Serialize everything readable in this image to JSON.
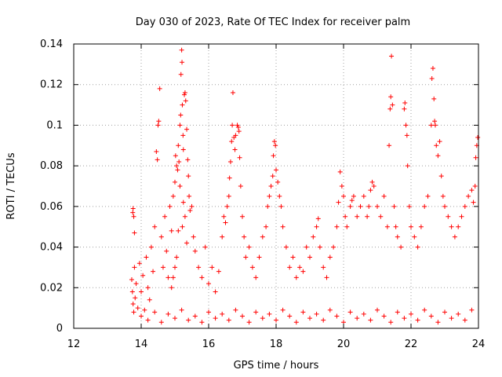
{
  "chart_data": {
    "type": "scatter",
    "title": "Day 030 of 2023, Rate Of TEC Index for receiver palm",
    "xlabel": "GPS time / hours",
    "ylabel": "ROTI / TECUs",
    "xlim": [
      12,
      24
    ],
    "ylim": [
      0,
      0.14
    ],
    "x_ticks": [
      12,
      14,
      16,
      18,
      20,
      22,
      24
    ],
    "x_tick_labels": [
      "12",
      "14",
      "16",
      "18",
      "20",
      "22",
      "24"
    ],
    "y_ticks": [
      0,
      0.02,
      0.04,
      0.06,
      0.08,
      0.1,
      0.12,
      0.14
    ],
    "y_tick_labels": [
      "0",
      "0.02",
      "0.04",
      "0.06",
      "0.08",
      "0.1",
      "0.12",
      "0.14"
    ],
    "grid": true,
    "marker": "+",
    "series": [
      {
        "name": "ROTI",
        "color": "#ff0000",
        "points": [
          [
            13.75,
            0.057
          ],
          [
            13.76,
            0.059
          ],
          [
            13.78,
            0.055
          ],
          [
            13.8,
            0.047
          ],
          [
            13.72,
            0.024
          ],
          [
            13.74,
            0.018
          ],
          [
            13.76,
            0.012
          ],
          [
            13.78,
            0.008
          ],
          [
            13.8,
            0.03
          ],
          [
            13.82,
            0.015
          ],
          [
            13.85,
            0.022
          ],
          [
            13.9,
            0.01
          ],
          [
            13.95,
            0.032
          ],
          [
            14.0,
            0.018
          ],
          [
            14.05,
            0.026
          ],
          [
            14.1,
            0.009
          ],
          [
            14.15,
            0.035
          ],
          [
            14.2,
            0.02
          ],
          [
            14.25,
            0.014
          ],
          [
            14.3,
            0.04
          ],
          [
            14.35,
            0.028
          ],
          [
            14.4,
            0.05
          ],
          [
            14.45,
            0.087
          ],
          [
            14.48,
            0.083
          ],
          [
            14.5,
            0.1
          ],
          [
            14.52,
            0.102
          ],
          [
            14.55,
            0.118
          ],
          [
            14.6,
            0.045
          ],
          [
            14.65,
            0.03
          ],
          [
            14.7,
            0.055
          ],
          [
            14.75,
            0.038
          ],
          [
            14.8,
            0.025
          ],
          [
            14.85,
            0.06
          ],
          [
            14.9,
            0.048
          ],
          [
            14.95,
            0.065
          ],
          [
            15.0,
            0.072
          ],
          [
            15.02,
            0.085
          ],
          [
            15.05,
            0.08
          ],
          [
            15.08,
            0.078
          ],
          [
            15.1,
            0.09
          ],
          [
            15.12,
            0.082
          ],
          [
            15.15,
            0.1
          ],
          [
            15.17,
            0.105
          ],
          [
            15.18,
            0.125
          ],
          [
            15.2,
            0.137
          ],
          [
            15.21,
            0.131
          ],
          [
            15.22,
            0.11
          ],
          [
            15.24,
            0.095
          ],
          [
            15.25,
            0.088
          ],
          [
            15.28,
            0.115
          ],
          [
            15.3,
            0.116
          ],
          [
            15.32,
            0.112
          ],
          [
            15.35,
            0.098
          ],
          [
            15.38,
            0.083
          ],
          [
            15.4,
            0.075
          ],
          [
            15.42,
            0.065
          ],
          [
            15.45,
            0.058
          ],
          [
            15.5,
            0.06
          ],
          [
            15.55,
            0.045
          ],
          [
            15.6,
            0.038
          ],
          [
            15.3,
            0.055
          ],
          [
            15.25,
            0.062
          ],
          [
            15.22,
            0.05
          ],
          [
            15.35,
            0.042
          ],
          [
            15.15,
            0.07
          ],
          [
            15.1,
            0.048
          ],
          [
            15.05,
            0.035
          ],
          [
            15.0,
            0.03
          ],
          [
            14.95,
            0.025
          ],
          [
            14.9,
            0.02
          ],
          [
            15.7,
            0.03
          ],
          [
            15.8,
            0.025
          ],
          [
            15.9,
            0.04
          ],
          [
            16.0,
            0.022
          ],
          [
            16.1,
            0.03
          ],
          [
            16.2,
            0.018
          ],
          [
            16.3,
            0.028
          ],
          [
            16.4,
            0.045
          ],
          [
            16.45,
            0.055
          ],
          [
            16.5,
            0.052
          ],
          [
            16.55,
            0.06
          ],
          [
            16.6,
            0.065
          ],
          [
            16.62,
            0.074
          ],
          [
            16.65,
            0.082
          ],
          [
            16.68,
            0.092
          ],
          [
            16.7,
            0.1
          ],
          [
            16.72,
            0.116
          ],
          [
            16.75,
            0.094
          ],
          [
            16.78,
            0.088
          ],
          [
            16.8,
            0.095
          ],
          [
            16.85,
            0.1
          ],
          [
            16.88,
            0.099
          ],
          [
            16.9,
            0.097
          ],
          [
            16.92,
            0.084
          ],
          [
            16.95,
            0.07
          ],
          [
            17.0,
            0.055
          ],
          [
            17.05,
            0.045
          ],
          [
            17.1,
            0.035
          ],
          [
            17.2,
            0.04
          ],
          [
            17.3,
            0.03
          ],
          [
            17.4,
            0.025
          ],
          [
            17.5,
            0.035
          ],
          [
            17.6,
            0.045
          ],
          [
            17.7,
            0.05
          ],
          [
            17.75,
            0.06
          ],
          [
            17.8,
            0.065
          ],
          [
            17.85,
            0.07
          ],
          [
            17.9,
            0.075
          ],
          [
            17.92,
            0.085
          ],
          [
            17.95,
            0.092
          ],
          [
            17.98,
            0.09
          ],
          [
            18.0,
            0.078
          ],
          [
            18.05,
            0.072
          ],
          [
            18.1,
            0.065
          ],
          [
            18.15,
            0.06
          ],
          [
            18.2,
            0.05
          ],
          [
            18.3,
            0.04
          ],
          [
            18.4,
            0.03
          ],
          [
            18.5,
            0.035
          ],
          [
            18.6,
            0.025
          ],
          [
            18.7,
            0.03
          ],
          [
            18.8,
            0.028
          ],
          [
            18.9,
            0.04
          ],
          [
            19.0,
            0.035
          ],
          [
            19.1,
            0.045
          ],
          [
            19.2,
            0.05
          ],
          [
            19.25,
            0.054
          ],
          [
            19.3,
            0.04
          ],
          [
            19.4,
            0.03
          ],
          [
            19.5,
            0.025
          ],
          [
            19.6,
            0.035
          ],
          [
            19.7,
            0.04
          ],
          [
            19.8,
            0.05
          ],
          [
            19.85,
            0.062
          ],
          [
            19.9,
            0.077
          ],
          [
            19.95,
            0.07
          ],
          [
            20.0,
            0.065
          ],
          [
            20.05,
            0.055
          ],
          [
            20.1,
            0.05
          ],
          [
            20.2,
            0.06
          ],
          [
            20.25,
            0.063
          ],
          [
            20.3,
            0.065
          ],
          [
            20.4,
            0.055
          ],
          [
            20.5,
            0.06
          ],
          [
            20.6,
            0.065
          ],
          [
            20.7,
            0.055
          ],
          [
            20.75,
            0.06
          ],
          [
            20.8,
            0.068
          ],
          [
            20.85,
            0.072
          ],
          [
            20.9,
            0.07
          ],
          [
            21.0,
            0.06
          ],
          [
            21.1,
            0.055
          ],
          [
            21.2,
            0.065
          ],
          [
            21.3,
            0.05
          ],
          [
            21.35,
            0.09
          ],
          [
            21.38,
            0.108
          ],
          [
            21.4,
            0.114
          ],
          [
            21.42,
            0.134
          ],
          [
            21.45,
            0.11
          ],
          [
            21.5,
            0.06
          ],
          [
            21.55,
            0.05
          ],
          [
            21.6,
            0.045
          ],
          [
            21.7,
            0.04
          ],
          [
            21.8,
            0.108
          ],
          [
            21.82,
            0.111
          ],
          [
            21.85,
            0.1
          ],
          [
            21.88,
            0.095
          ],
          [
            21.9,
            0.08
          ],
          [
            21.95,
            0.06
          ],
          [
            22.0,
            0.05
          ],
          [
            22.1,
            0.045
          ],
          [
            22.2,
            0.04
          ],
          [
            22.3,
            0.05
          ],
          [
            22.4,
            0.06
          ],
          [
            22.5,
            0.065
          ],
          [
            22.6,
            0.1
          ],
          [
            22.62,
            0.123
          ],
          [
            22.65,
            0.128
          ],
          [
            22.68,
            0.113
          ],
          [
            22.7,
            0.102
          ],
          [
            22.72,
            0.1
          ],
          [
            22.75,
            0.09
          ],
          [
            22.8,
            0.085
          ],
          [
            22.85,
            0.092
          ],
          [
            22.9,
            0.075
          ],
          [
            22.95,
            0.065
          ],
          [
            23.0,
            0.06
          ],
          [
            23.1,
            0.055
          ],
          [
            23.2,
            0.05
          ],
          [
            23.3,
            0.045
          ],
          [
            23.4,
            0.05
          ],
          [
            23.5,
            0.055
          ],
          [
            23.6,
            0.06
          ],
          [
            23.7,
            0.065
          ],
          [
            23.8,
            0.068
          ],
          [
            23.85,
            0.062
          ],
          [
            23.9,
            0.07
          ],
          [
            23.92,
            0.084
          ],
          [
            23.95,
            0.09
          ],
          [
            23.98,
            0.094
          ],
          [
            14.0,
            0.006
          ],
          [
            14.2,
            0.004
          ],
          [
            14.4,
            0.008
          ],
          [
            14.6,
            0.003
          ],
          [
            14.8,
            0.007
          ],
          [
            15.0,
            0.005
          ],
          [
            15.2,
            0.009
          ],
          [
            15.4,
            0.004
          ],
          [
            15.6,
            0.006
          ],
          [
            15.8,
            0.003
          ],
          [
            16.0,
            0.008
          ],
          [
            16.2,
            0.005
          ],
          [
            16.4,
            0.007
          ],
          [
            16.6,
            0.004
          ],
          [
            16.8,
            0.009
          ],
          [
            17.0,
            0.006
          ],
          [
            17.2,
            0.003
          ],
          [
            17.4,
            0.008
          ],
          [
            17.6,
            0.005
          ],
          [
            17.8,
            0.007
          ],
          [
            18.0,
            0.004
          ],
          [
            18.2,
            0.009
          ],
          [
            18.4,
            0.006
          ],
          [
            18.6,
            0.003
          ],
          [
            18.8,
            0.008
          ],
          [
            19.0,
            0.005
          ],
          [
            19.2,
            0.007
          ],
          [
            19.4,
            0.004
          ],
          [
            19.6,
            0.009
          ],
          [
            19.8,
            0.006
          ],
          [
            20.0,
            0.003
          ],
          [
            20.2,
            0.008
          ],
          [
            20.4,
            0.005
          ],
          [
            20.6,
            0.007
          ],
          [
            20.8,
            0.004
          ],
          [
            21.0,
            0.009
          ],
          [
            21.2,
            0.006
          ],
          [
            21.4,
            0.003
          ],
          [
            21.6,
            0.008
          ],
          [
            21.8,
            0.005
          ],
          [
            22.0,
            0.007
          ],
          [
            22.2,
            0.004
          ],
          [
            22.4,
            0.009
          ],
          [
            22.6,
            0.006
          ],
          [
            22.8,
            0.003
          ],
          [
            23.0,
            0.008
          ],
          [
            23.2,
            0.005
          ],
          [
            23.4,
            0.007
          ],
          [
            23.6,
            0.004
          ],
          [
            23.8,
            0.009
          ]
        ]
      }
    ]
  }
}
